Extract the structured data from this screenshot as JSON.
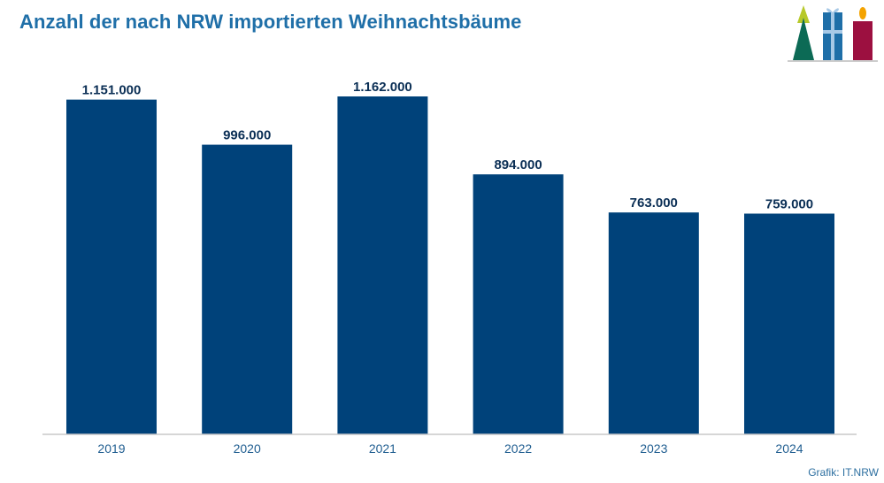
{
  "chart_data": {
    "type": "bar",
    "title": "Anzahl der nach NRW importierten Weihnachtsbäume",
    "categories": [
      "2019",
      "2020",
      "2021",
      "2022",
      "2023",
      "2024"
    ],
    "values": [
      1151000,
      996000,
      1162000,
      894000,
      763000,
      759000
    ],
    "value_labels": [
      "1.151.000",
      "996.000",
      "1.162.000",
      "894.000",
      "763.000",
      "759.000"
    ],
    "xlabel": "",
    "ylabel": "",
    "ylim": [
      0,
      1200000
    ],
    "grid": false,
    "legend": "none",
    "bar_color": "#00427a"
  },
  "source": "Grafik: IT.NRW",
  "colors": {
    "title": "#1f6fa8",
    "axis": "#c8c8c8",
    "tick_label": "#1f5d90",
    "value_label": "#0b2f55",
    "logo_tree_top": "#b7c92a",
    "logo_tree_bottom": "#0c6a55",
    "logo_gift": "#1f6fa8",
    "logo_candle": "#9c1040",
    "logo_flame": "#f4a300"
  },
  "logo_icons": [
    "christmas-tree-icon",
    "gift-box-icon",
    "candle-icon"
  ]
}
